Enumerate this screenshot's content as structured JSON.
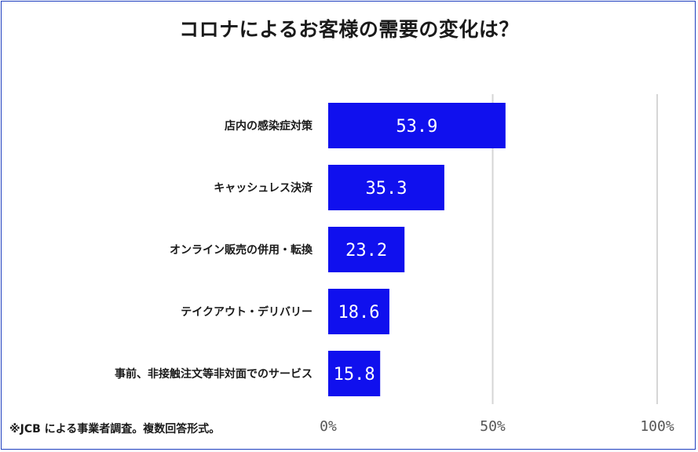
{
  "chart_data": {
    "type": "bar",
    "orientation": "horizontal",
    "title": "コロナによるお客様の需要の変化は？",
    "categories": [
      "店内の感染症対策",
      "キャッシュレス決済",
      "オンライン販売の併用・転換",
      "テイクアウト・デリバリー",
      "事前、非接触注文等非対面でのサービス"
    ],
    "values": [
      53.9,
      35.3,
      23.2,
      18.6,
      15.8
    ],
    "data_labels": [
      "53.9",
      "35.3",
      "23.2",
      "18.6",
      "15.8"
    ],
    "xlim": [
      0,
      100
    ],
    "x_ticks": [
      0,
      50,
      100
    ],
    "x_tick_labels": [
      "0%",
      "50%",
      "100%"
    ],
    "grid": true,
    "bar_color": "#1010ee",
    "grid_color": "#d6d6d6"
  },
  "footnote": "※JCB による事業者調査。複数回答形式。"
}
